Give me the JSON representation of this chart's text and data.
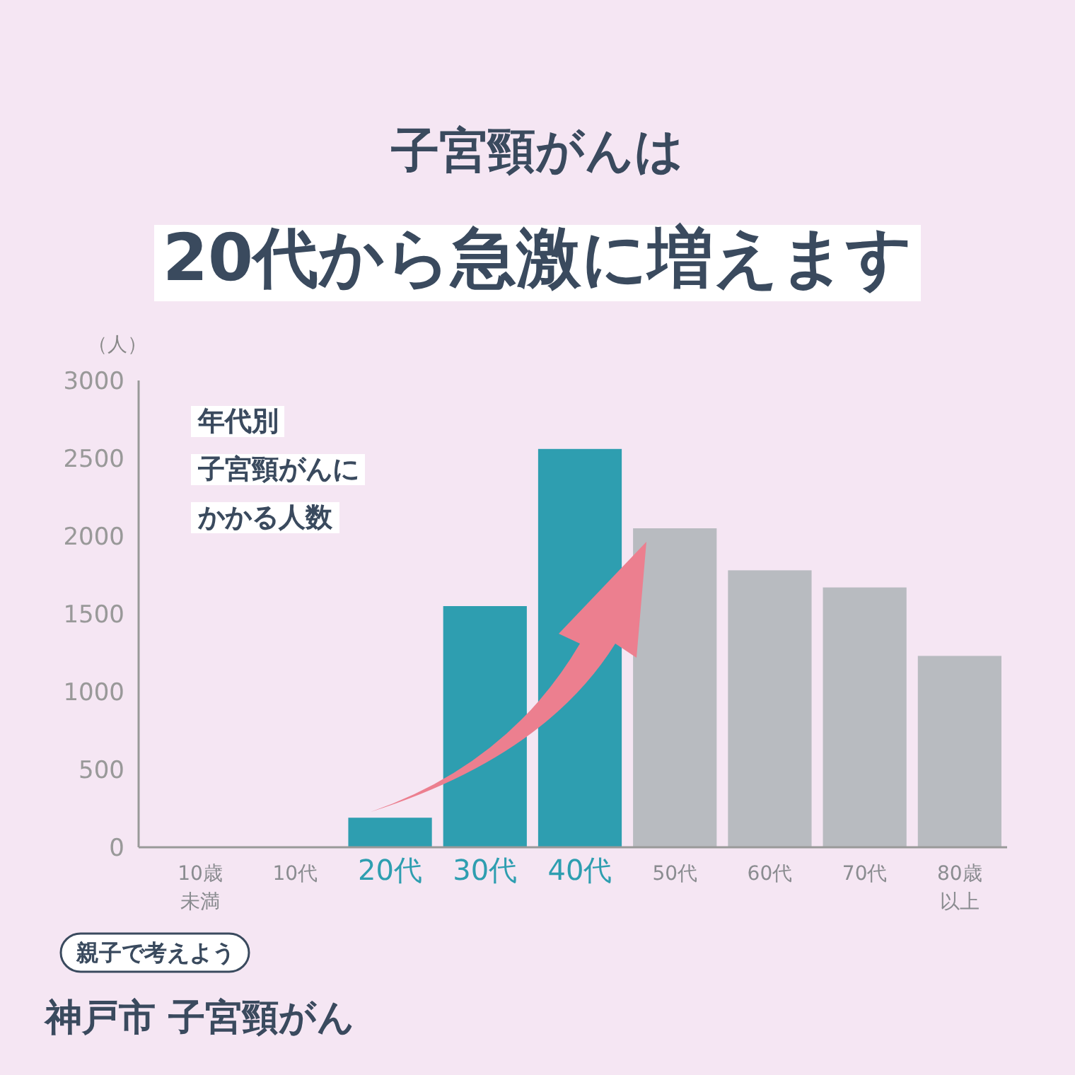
{
  "chart_data": {
    "type": "bar",
    "title": "子宮頸がんは",
    "subtitle": "20代から急激に増えます",
    "ylabel": "（人）",
    "categories": [
      "10歳未満",
      "10代",
      "20代",
      "30代",
      "40代",
      "50代",
      "60代",
      "70代",
      "80歳以上"
    ],
    "values": [
      0,
      0,
      190,
      1550,
      2560,
      2050,
      1780,
      1670,
      1230
    ],
    "colors": [
      "#b8bbc0",
      "#b8bbc0",
      "#2e9eb0",
      "#2e9eb0",
      "#2e9eb0",
      "#b8bbc0",
      "#b8bbc0",
      "#b8bbc0",
      "#b8bbc0"
    ],
    "ylim": [
      0,
      3000
    ],
    "yticks": [
      0,
      500,
      1000,
      1500,
      2000,
      2500,
      3000
    ],
    "grid": false,
    "annotations": [
      "年代別",
      "子宮頸がんに",
      "かかる人数",
      "親子で考えよう",
      "神戸市 子宮頸がん"
    ]
  }
}
